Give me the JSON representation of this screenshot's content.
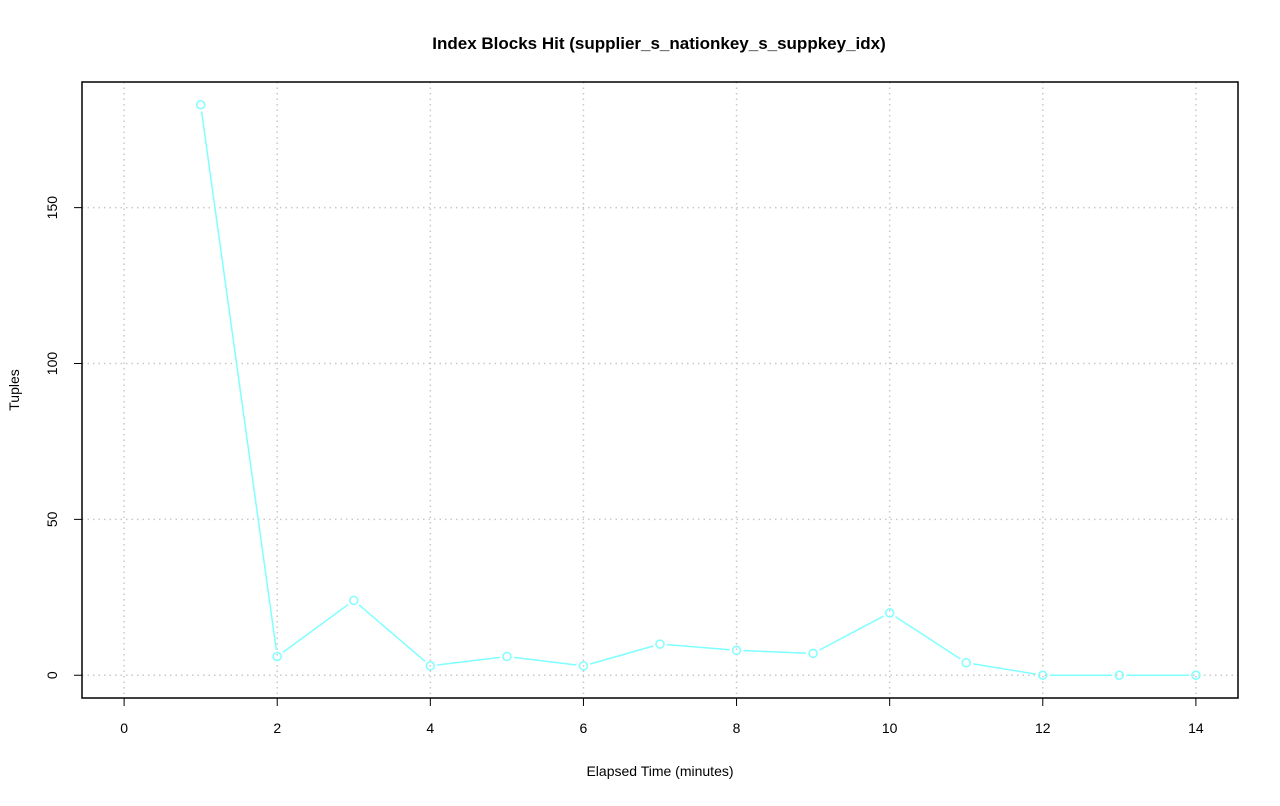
{
  "chart_data": {
    "type": "line",
    "title": "Index Blocks Hit (supplier_s_nationkey_s_suppkey_idx)",
    "xlabel": "Elapsed Time (minutes)",
    "ylabel": "Tuples",
    "x": [
      1,
      2,
      3,
      4,
      5,
      6,
      7,
      8,
      9,
      10,
      11,
      12,
      13,
      14
    ],
    "series": [
      {
        "values": [
          183,
          6,
          24,
          3,
          6,
          3,
          10,
          8,
          7,
          20,
          4,
          0,
          0,
          0
        ],
        "color": "#7fffff"
      }
    ],
    "xticks": [
      "0",
      "2",
      "4",
      "6",
      "8",
      "10",
      "12",
      "14"
    ],
    "yticks": [
      "0",
      "50",
      "100",
      "150"
    ],
    "xlim": [
      -0.55,
      14.55
    ],
    "ylim": [
      -7.3,
      190.3
    ],
    "grid": true,
    "marker": "open-circle"
  }
}
